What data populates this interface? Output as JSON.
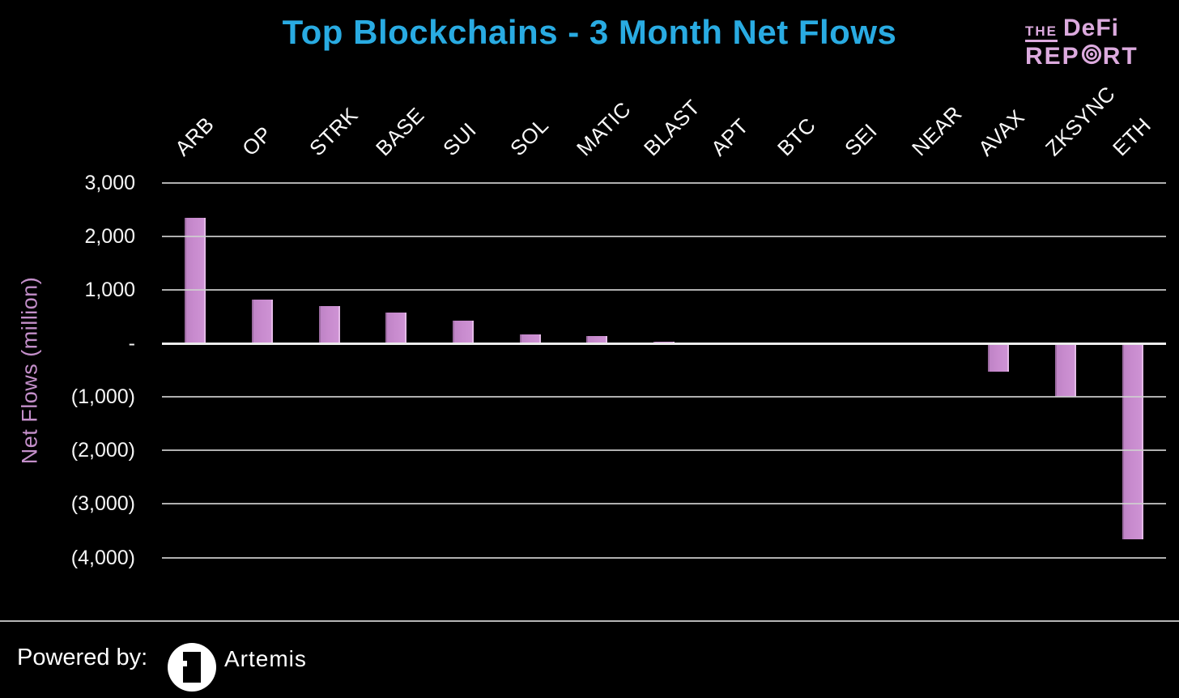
{
  "header": {
    "title": "Top Blockchains - 3 Month Net Flows",
    "title_color": "#29abe2",
    "logo": {
      "the": "THE",
      "defi": "DeFi",
      "rep": "REP",
      "rt": "RT",
      "color": "#dcaade"
    }
  },
  "chart_data": {
    "type": "bar",
    "title": "Top Blockchains - 3 Month Net Flows",
    "categories": [
      "ARB",
      "OP",
      "STRK",
      "BASE",
      "SUI",
      "SOL",
      "MATIC",
      "BLAST",
      "APT",
      "BTC",
      "SEI",
      "NEAR",
      "AVAX",
      "ZKSYNC",
      "ETH"
    ],
    "values": [
      2350,
      810,
      690,
      580,
      420,
      160,
      130,
      25,
      20,
      15,
      10,
      0,
      -530,
      -1000,
      -3660
    ],
    "xlabel": "",
    "ylabel": "Net Flows (million)",
    "ylim": [
      -4000,
      3000
    ],
    "ytick_step": 1000,
    "ytick_labels": [
      "3,000",
      "2,000",
      "1,000",
      "-",
      "(1,000)",
      "(2,000)",
      "(3,000)",
      "(4,000)"
    ],
    "grid": true,
    "legend": "none",
    "bar_color": "#c88bce",
    "background_color": "#000000",
    "negative_label_format": "parentheses"
  },
  "footer": {
    "powered_by": "Powered by:",
    "brand": "Artemis"
  }
}
